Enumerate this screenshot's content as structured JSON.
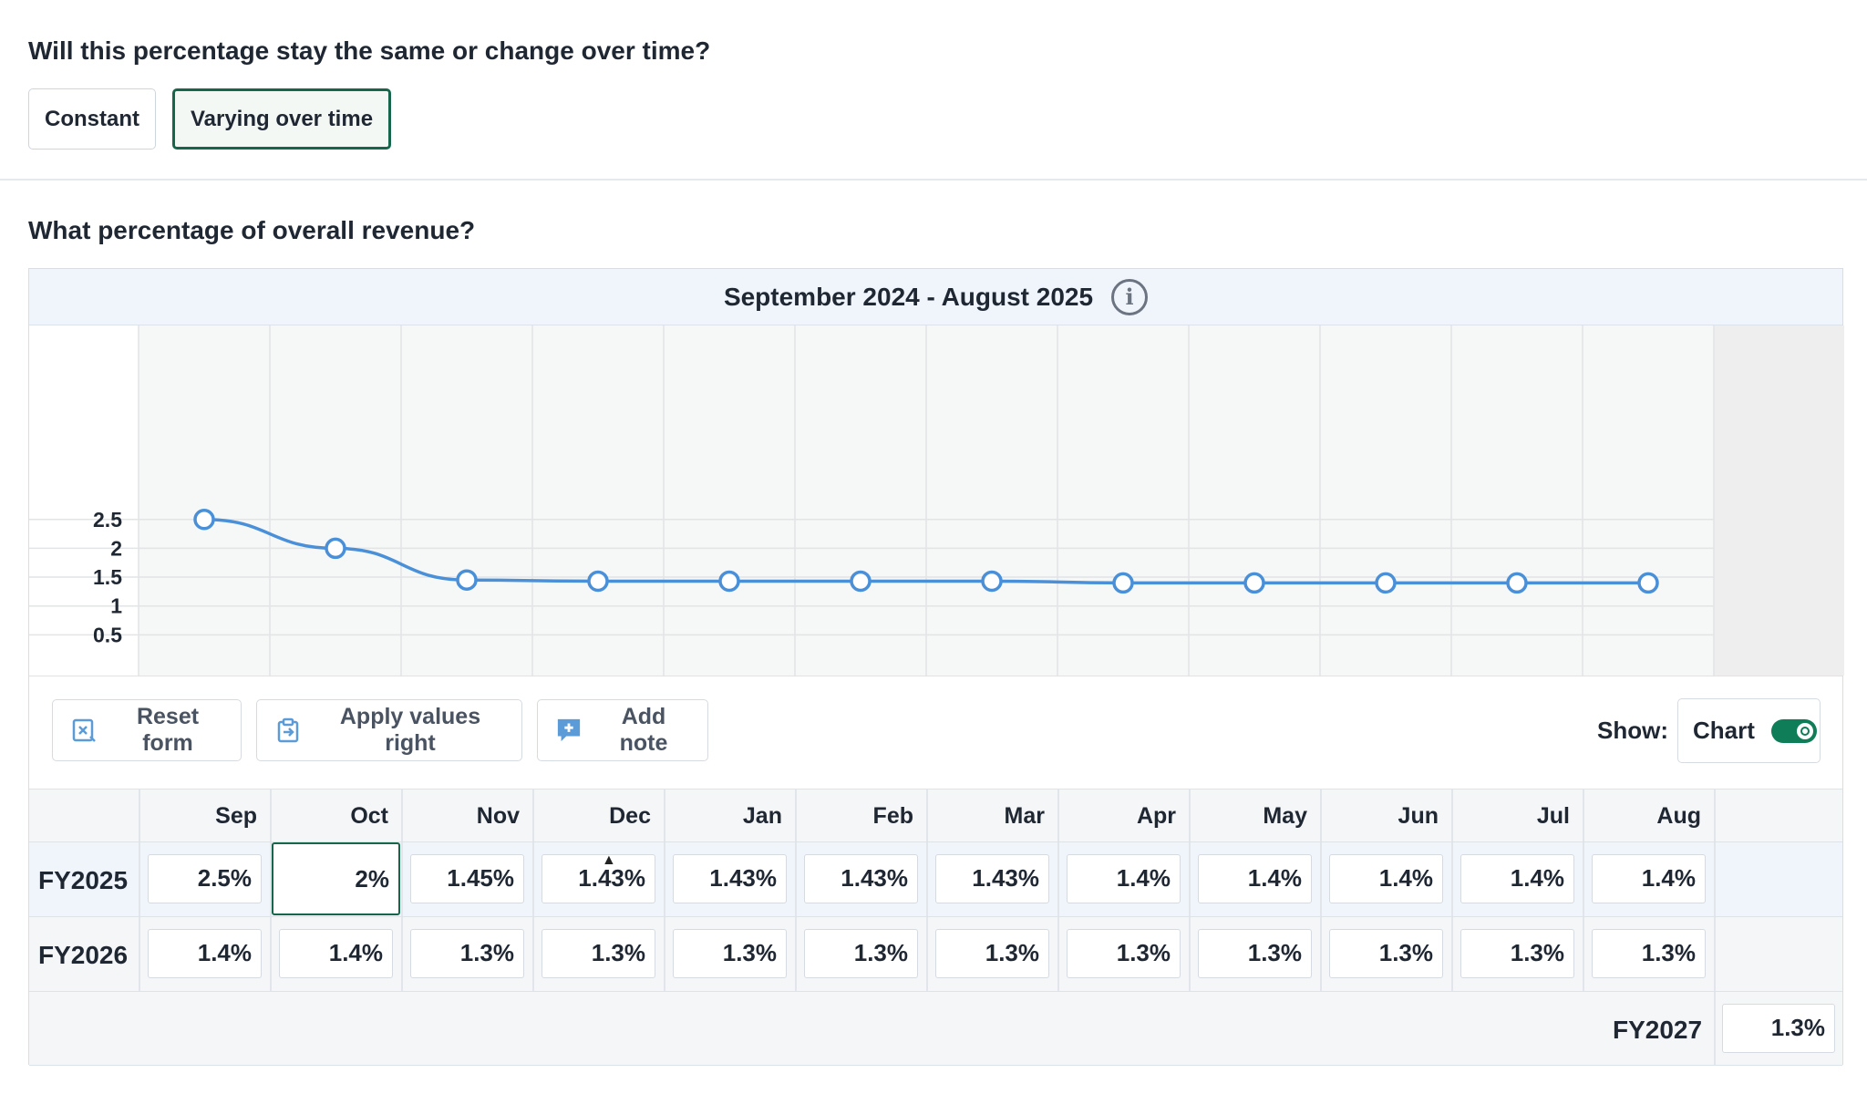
{
  "question_time": "Will this percentage stay the same or change over time?",
  "options": {
    "constant": "Constant",
    "varying": "Varying over time",
    "selected": "varying"
  },
  "question_pct": "What percentage of overall revenue?",
  "period_label": "September 2024 - August 2025",
  "toolbar": {
    "reset_label": "Reset form",
    "apply_label": "Apply values right",
    "note_label": "Add note",
    "show_label": "Show:",
    "chart_toggle_label": "Chart",
    "chart_toggle_on": true
  },
  "months": [
    "Sep",
    "Oct",
    "Nov",
    "Dec",
    "Jan",
    "Feb",
    "Mar",
    "Apr",
    "May",
    "Jun",
    "Jul",
    "Aug"
  ],
  "rows": [
    {
      "label": "FY2025",
      "values": [
        "2.5%",
        "2%",
        "1.45%",
        "1.43%",
        "1.43%",
        "1.43%",
        "1.43%",
        "1.4%",
        "1.4%",
        "1.4%",
        "1.4%",
        "1.4%"
      ]
    },
    {
      "label": "FY2026",
      "values": [
        "1.4%",
        "1.4%",
        "1.3%",
        "1.3%",
        "1.3%",
        "1.3%",
        "1.3%",
        "1.3%",
        "1.3%",
        "1.3%",
        "1.3%",
        "1.3%"
      ]
    }
  ],
  "fy2027": {
    "label": "FY2027",
    "value": "1.3%"
  },
  "chart_data": {
    "type": "line",
    "categories": [
      "Sep",
      "Oct",
      "Nov",
      "Dec",
      "Jan",
      "Feb",
      "Mar",
      "Apr",
      "May",
      "Jun",
      "Jul",
      "Aug"
    ],
    "values": [
      2.5,
      2,
      1.45,
      1.43,
      1.43,
      1.43,
      1.43,
      1.4,
      1.4,
      1.4,
      1.4,
      1.4
    ],
    "yticks": [
      "0.5",
      "1",
      "1.5",
      "2",
      "2.5"
    ],
    "ylim": [
      0,
      3
    ],
    "grid": true,
    "line_color": "#4a90d9"
  }
}
